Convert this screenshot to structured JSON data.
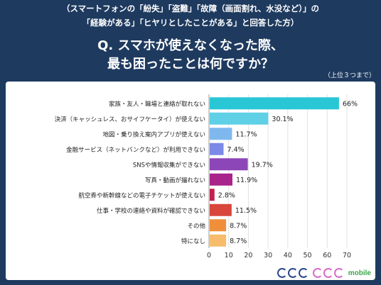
{
  "header": {
    "subtitle_line1": "（スマートフォンの「紛失」「盗難」「故障（画面割れ、水没など）」の",
    "subtitle_line2": "「経験がある」「ヒヤリとしたことがある」と回答した方）",
    "question_line1": "Q. スマホが使えなくなった際、",
    "question_line2": "最も困ったことは何ですか？",
    "note": "（上位３つまで）"
  },
  "brand": {
    "mark_icon": "geo-mark",
    "text": "mobile"
  },
  "chart_data": {
    "type": "bar",
    "orientation": "horizontal",
    "categories": [
      "家族・友人・職場と連絡が取れない",
      "決済（キャッシュレス、おサイフケータイ）が使えない",
      "地図・乗り換え案内アプリが使えない",
      "金融サービス（ネットバンクなど）が利用できない",
      "SNSや情報収集ができない",
      "写真・動画が撮れない",
      "航空券や新幹線などの電子チケットが使えない",
      "仕事・学校の連絡や資料が確認できない",
      "その他",
      "特になし"
    ],
    "values": [
      66,
      30.1,
      11.7,
      7.4,
      19.7,
      11.9,
      2.8,
      11.5,
      8.7,
      8.7
    ],
    "value_labels": [
      "66%",
      "30.1%",
      "11.7%",
      "7.4%",
      "19.7%",
      "11.9%",
      "2.8%",
      "11.5%",
      "8.7%",
      "8.7%"
    ],
    "colors": [
      "#29c6d6",
      "#5fd0e6",
      "#7fb8ee",
      "#7a8ae6",
      "#8d46b8",
      "#a8238a",
      "#c41f4e",
      "#d8463c",
      "#f08f3a",
      "#f6bc6b"
    ],
    "xlim": [
      0,
      70
    ],
    "xticks": [
      "0",
      "10",
      "20",
      "30",
      "40",
      "50",
      "60",
      "70"
    ],
    "grid": true
  }
}
